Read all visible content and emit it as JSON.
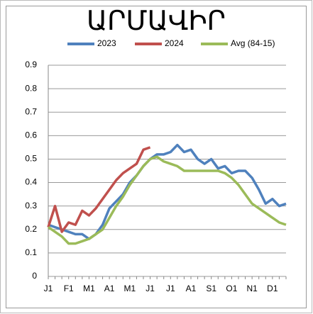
{
  "chart_data": {
    "type": "line",
    "title": "ԱՐՄԱՎԻՐ",
    "categories": [
      "J1",
      null,
      null,
      "F1",
      null,
      null,
      "M1",
      null,
      null,
      "A1",
      null,
      null,
      "M1",
      null,
      null,
      "J1",
      null,
      null,
      "J1",
      null,
      null,
      "A1",
      null,
      null,
      "S1",
      null,
      null,
      "O1",
      null,
      null,
      "N1",
      null,
      null,
      "D1",
      null,
      null
    ],
    "series": [
      {
        "name": "2023",
        "color": "#4f81bd",
        "values": [
          0.22,
          0.21,
          0.2,
          0.19,
          0.18,
          0.18,
          0.16,
          0.18,
          0.22,
          0.29,
          0.32,
          0.35,
          0.4,
          0.43,
          0.47,
          0.5,
          0.52,
          0.52,
          0.53,
          0.56,
          0.53,
          0.54,
          0.5,
          0.48,
          0.5,
          0.46,
          0.47,
          0.44,
          0.45,
          0.45,
          0.42,
          0.37,
          0.31,
          0.33,
          0.3,
          0.31
        ]
      },
      {
        "name": "2024",
        "color": "#c0504d",
        "values": [
          0.21,
          0.3,
          0.19,
          0.23,
          0.22,
          0.28,
          0.26,
          0.29,
          0.33,
          0.37,
          0.41,
          0.44,
          0.46,
          0.48,
          0.54,
          0.55,
          null,
          null,
          null,
          null,
          null,
          null,
          null,
          null,
          null,
          null,
          null,
          null,
          null,
          null,
          null,
          null,
          null,
          null,
          null,
          null
        ]
      },
      {
        "name": "Avg (84-15)",
        "color": "#9bbb59",
        "values": [
          0.21,
          0.19,
          0.17,
          0.14,
          0.14,
          0.15,
          0.16,
          0.18,
          0.2,
          0.25,
          0.3,
          0.34,
          0.39,
          0.43,
          0.47,
          0.5,
          0.51,
          0.49,
          0.48,
          0.47,
          0.45,
          0.45,
          0.45,
          0.45,
          0.45,
          0.45,
          0.44,
          0.42,
          0.39,
          0.35,
          0.31,
          0.29,
          0.27,
          0.25,
          0.23,
          0.22
        ]
      }
    ],
    "ylim": [
      0,
      0.9
    ],
    "yticks": [
      0,
      0.1,
      0.2,
      0.3,
      0.4,
      0.5,
      0.6,
      0.7,
      0.8,
      0.9
    ],
    "grid": true
  }
}
